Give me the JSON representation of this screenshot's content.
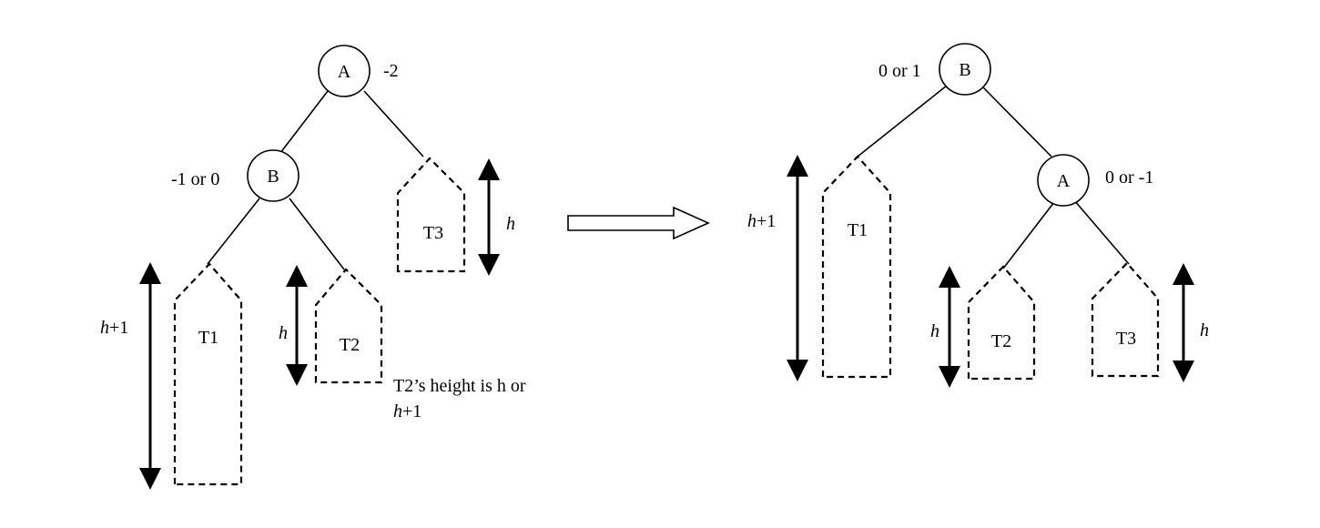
{
  "left": {
    "node_a": {
      "label": "A",
      "balance": "-2"
    },
    "node_b": {
      "label": "B",
      "balance": "-1 or 0"
    },
    "t1": {
      "label": "T1",
      "height_var": "h",
      "height_suffix": "+1"
    },
    "t2": {
      "label": "T2",
      "height_var": "h"
    },
    "t3": {
      "label": "T3",
      "height_var": "h"
    },
    "note": {
      "line1": "T2’s height is h or",
      "line2_var": "h",
      "line2_suffix": "+1"
    }
  },
  "right": {
    "node_b": {
      "label": "B",
      "balance": "0 or 1"
    },
    "node_a": {
      "label": "A",
      "balance": "0 or -1"
    },
    "t1": {
      "label": "T1",
      "height_var": "h",
      "height_suffix": "+1"
    },
    "t2": {
      "label": "T2",
      "height_var": "h"
    },
    "t3": {
      "label": "T3",
      "height_var": "h"
    }
  }
}
